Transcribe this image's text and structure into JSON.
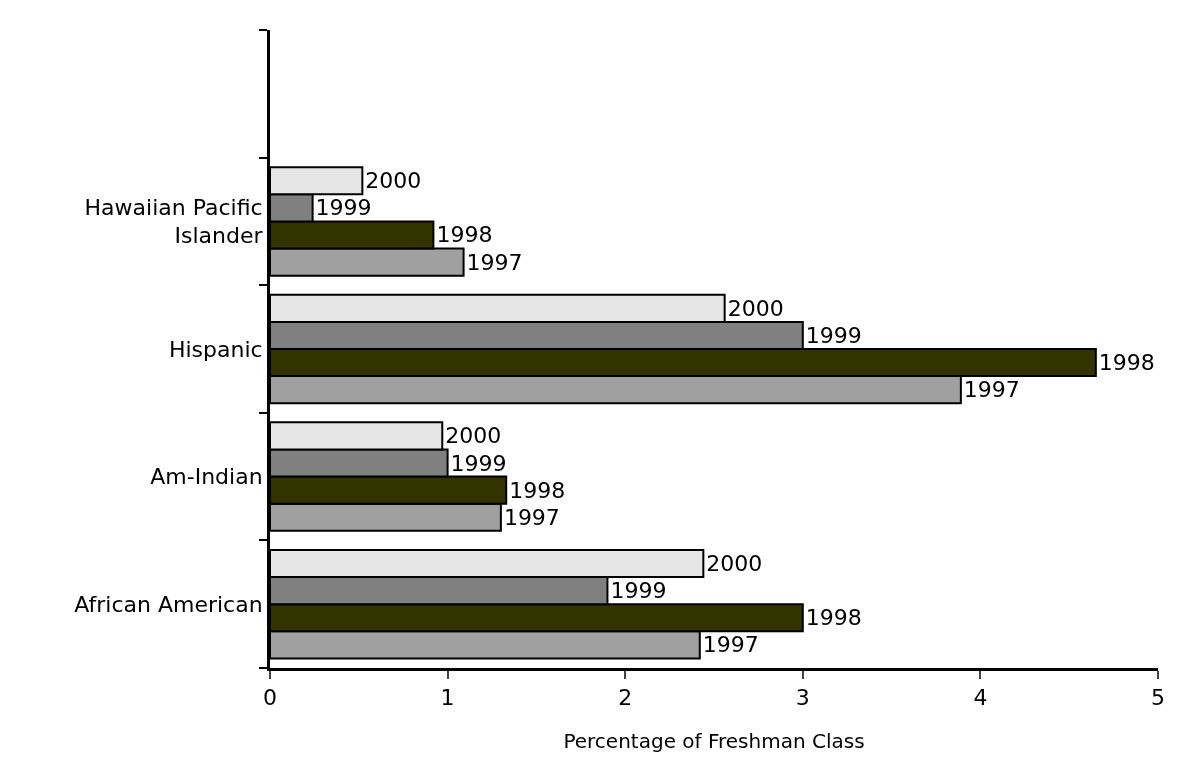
{
  "chart_data": {
    "type": "bar",
    "orientation": "horizontal",
    "xlabel": "Percentage of Freshman Class",
    "categories": [
      null,
      "Hawaiian Pacific Islander",
      "Hispanic",
      "Am-Indian",
      "African American"
    ],
    "series": [
      {
        "name": "2000",
        "color": "#e6e6e6",
        "values": [
          null,
          0.52,
          2.56,
          0.97,
          2.44
        ]
      },
      {
        "name": "1999",
        "color": "#808080",
        "values": [
          null,
          0.24,
          3.0,
          1.0,
          1.9
        ]
      },
      {
        "name": "1998",
        "color": "#333300",
        "values": [
          null,
          0.92,
          4.65,
          1.33,
          3.0
        ]
      },
      {
        "name": "1997",
        "color": "#a0a0a0",
        "values": [
          null,
          1.09,
          3.89,
          1.3,
          2.42
        ]
      }
    ],
    "xlim": [
      0,
      5
    ],
    "xticks": [
      0,
      1,
      2,
      3,
      4,
      5
    ],
    "legend": false
  }
}
